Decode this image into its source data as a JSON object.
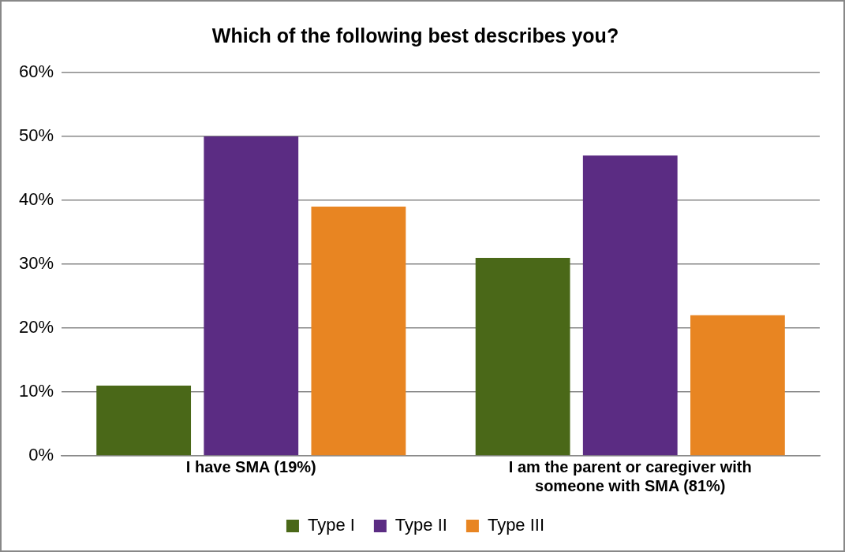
{
  "chart_data": {
    "type": "bar",
    "title": "Which of the following best describes you?",
    "categories": [
      "I have SMA (19%)",
      "I am the parent or caregiver with someone with SMA (81%)"
    ],
    "series": [
      {
        "name": "Type I",
        "color": "#4a6818",
        "values": [
          11,
          31
        ]
      },
      {
        "name": "Type II",
        "color": "#5b2c83",
        "values": [
          50,
          47
        ]
      },
      {
        "name": "Type III",
        "color": "#e88522",
        "values": [
          39,
          22
        ]
      }
    ],
    "ylim": [
      0,
      60
    ],
    "yticks": [
      {
        "value": 0,
        "label": "0%"
      },
      {
        "value": 10,
        "label": "10%"
      },
      {
        "value": 20,
        "label": "20%"
      },
      {
        "value": 30,
        "label": "30%"
      },
      {
        "value": 40,
        "label": "40%"
      },
      {
        "value": 50,
        "label": "50%"
      },
      {
        "value": 60,
        "label": "60%"
      }
    ],
    "grid": "y",
    "legend": "bottom"
  }
}
